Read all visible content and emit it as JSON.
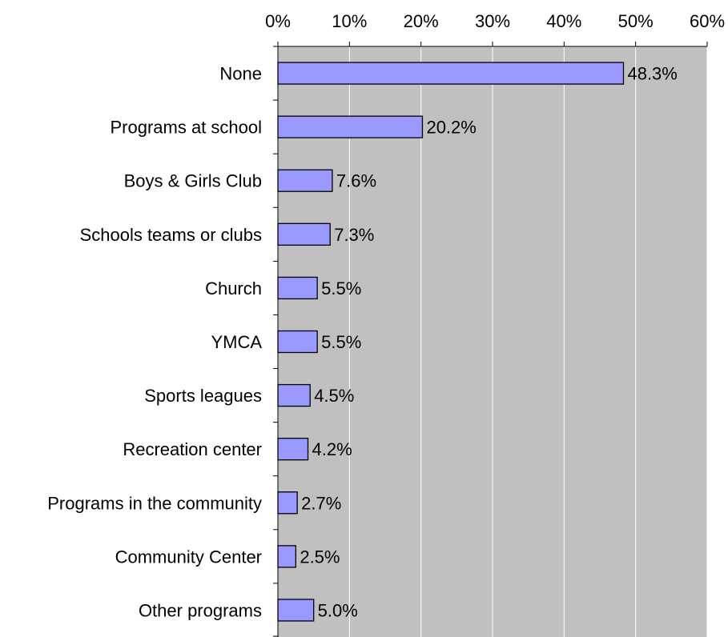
{
  "chart_data": {
    "type": "bar",
    "orientation": "horizontal",
    "categories": [
      "None",
      "Programs at school",
      "Boys & Girls Club",
      "Schools teams or clubs",
      "Church",
      "YMCA",
      "Sports leagues",
      "Recreation center",
      "Programs in the community",
      "Community Center",
      "Other programs"
    ],
    "values": [
      48.3,
      20.2,
      7.6,
      7.3,
      5.5,
      5.5,
      4.5,
      4.2,
      2.7,
      2.5,
      5.0
    ],
    "value_labels": [
      "48.3%",
      "20.2%",
      "7.6%",
      "7.3%",
      "5.5%",
      "5.5%",
      "4.5%",
      "4.2%",
      "2.7%",
      "2.5%",
      "5.0%"
    ],
    "x_ticks": [
      "0%",
      "10%",
      "20%",
      "30%",
      "40%",
      "50%",
      "60%"
    ],
    "xlim": [
      0,
      60
    ],
    "x_axis_position": "top",
    "grid": true,
    "colors": {
      "bar_fill": "#9999ff",
      "bar_stroke": "#000000",
      "plot_background": "#c0c0c0",
      "gridline": "#ffffff"
    }
  }
}
